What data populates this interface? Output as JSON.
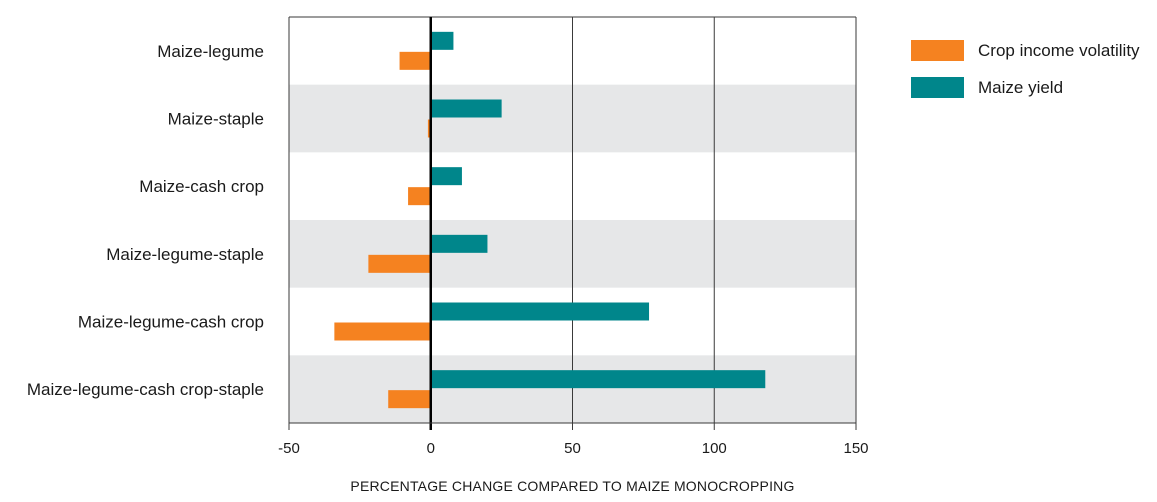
{
  "colors": {
    "band": "#e6e7e8",
    "grid": "#3a3a3a",
    "zero_line": "#000000",
    "crop_income_volatility": "#f58220",
    "maize_yield": "#00868b"
  },
  "chart_data": {
    "type": "bar",
    "orientation": "horizontal",
    "title": "",
    "xlabel": "PERCENTAGE CHANGE COMPARED TO MAIZE MONOCROPPING",
    "ylabel": "",
    "xlim": [
      -50,
      150
    ],
    "xticks": [
      -50,
      0,
      50,
      100,
      150
    ],
    "xtick_labels": [
      "-50",
      "0",
      "50",
      "100",
      "150"
    ],
    "grid": "vertical",
    "legend_position": "right",
    "categories": [
      "Maize-legume",
      "Maize-staple",
      "Maize-cash crop",
      "Maize-legume-staple",
      "Maize-legume-cash crop",
      "Maize-legume-cash crop-staple"
    ],
    "series": [
      {
        "name": "Crop income volatility",
        "color": "#f58220",
        "values": [
          -11,
          -1,
          -8,
          -22,
          -34,
          -15
        ]
      },
      {
        "name": "Maize yield",
        "color": "#00868b",
        "values": [
          8,
          25,
          11,
          20,
          77,
          118
        ]
      }
    ]
  }
}
